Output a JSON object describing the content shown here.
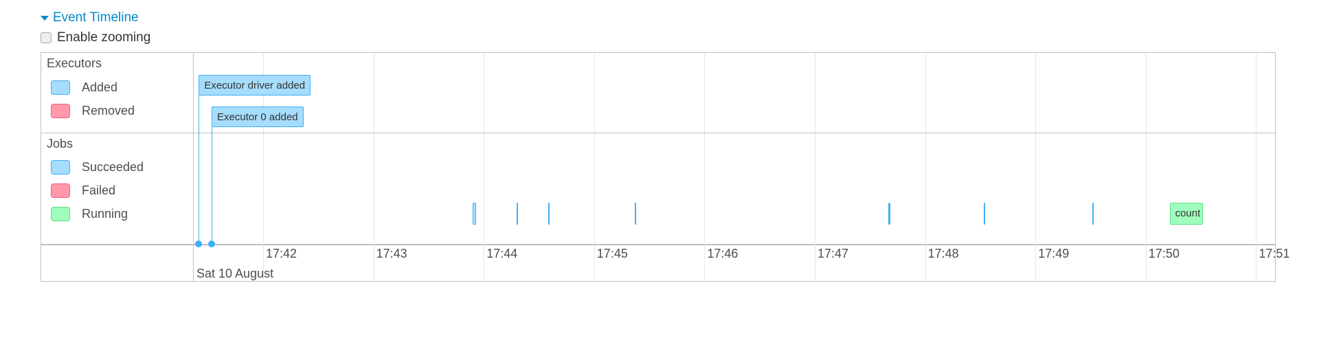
{
  "header": {
    "title": "Event Timeline",
    "enable_zooming_label": "Enable zooming",
    "enable_zooming_checked": false
  },
  "legend": {
    "executors": {
      "title": "Executors",
      "items": [
        {
          "label": "Added",
          "color": "#a6dcfc",
          "border": "#3eb0f7"
        },
        {
          "label": "Removed",
          "color": "#ff99aa",
          "border": "#f55a7a"
        }
      ]
    },
    "jobs": {
      "title": "Jobs",
      "items": [
        {
          "label": "Succeeded",
          "color": "#a6dcfc",
          "border": "#3eb0f7"
        },
        {
          "label": "Failed",
          "color": "#ff99aa",
          "border": "#f55a7a"
        },
        {
          "label": "Running",
          "color": "#a0fdbe",
          "border": "#5ce07f"
        }
      ]
    }
  },
  "axis": {
    "ticks": [
      "17:42",
      "17:43",
      "17:44",
      "17:45",
      "17:46",
      "17:47",
      "17:48",
      "17:49",
      "17:50",
      "17:51"
    ],
    "date_label": "Sat 10 August"
  },
  "executor_events": [
    {
      "label": "Executor driver added",
      "time": "17:41:25"
    },
    {
      "label": "Executor 0 added",
      "time": "17:41:32"
    }
  ],
  "jobs": [
    {
      "status": "succeeded",
      "start": "17:43:54",
      "end": "17:43:56"
    },
    {
      "status": "succeeded",
      "start": "17:44:18",
      "end": "17:44:18"
    },
    {
      "status": "succeeded",
      "start": "17:44:35",
      "end": "17:44:35"
    },
    {
      "status": "succeeded",
      "start": "17:45:22",
      "end": "17:45:22"
    },
    {
      "status": "succeeded",
      "start": "17:47:40",
      "end": "17:47:41"
    },
    {
      "status": "succeeded",
      "start": "17:48:32",
      "end": "17:48:32"
    },
    {
      "status": "succeeded",
      "start": "17:49:31",
      "end": "17:49:31"
    },
    {
      "status": "running",
      "label": "count",
      "start": "17:50:13",
      "end": "17:50:31"
    }
  ]
}
